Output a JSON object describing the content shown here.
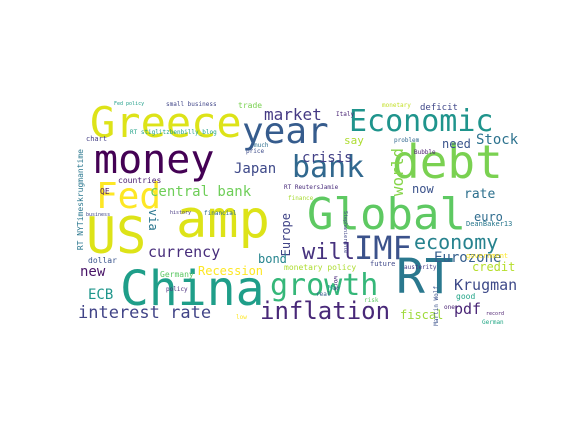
{
  "words": [
    {
      "text": "Greece",
      "color": "#dde318"
    },
    {
      "text": "year",
      "color": "#365c8d"
    },
    {
      "text": "Economic",
      "color": "#1f948c"
    },
    {
      "text": "money",
      "color": "#440154"
    },
    {
      "text": "debt",
      "color": "#7ad151"
    },
    {
      "text": "bank",
      "color": "#31688e"
    },
    {
      "text": "Fed",
      "color": "#fde725"
    },
    {
      "text": "amp",
      "color": "#dde318"
    },
    {
      "text": "Global",
      "color": "#5ec962"
    },
    {
      "text": "US",
      "color": "#dde318"
    },
    {
      "text": "IMF",
      "color": "#3b528b"
    },
    {
      "text": "China",
      "color": "#1f9e89"
    },
    {
      "text": "RT",
      "color": "#2a788e"
    },
    {
      "text": "growth",
      "color": "#35b779"
    },
    {
      "text": "inflation",
      "color": "#482878"
    },
    {
      "text": "economy",
      "color": "#26828e"
    },
    {
      "text": "will",
      "color": "#46327e"
    },
    {
      "text": "currency",
      "color": "#472d7b"
    },
    {
      "text": "interest rate",
      "color": "#414487"
    },
    {
      "text": "Krugman",
      "color": "#3e4a89"
    },
    {
      "text": "central bank",
      "color": "#6ece58"
    },
    {
      "text": "market",
      "color": "#443983"
    },
    {
      "text": "Stock",
      "color": "#2c728e"
    },
    {
      "text": "Japan",
      "color": "#3e4989"
    },
    {
      "text": "crisis",
      "color": "#424086"
    },
    {
      "text": "Eurozone",
      "color": "#355f8d"
    },
    {
      "text": "world",
      "color": "#86d549"
    },
    {
      "text": "rate",
      "color": "#2d708e"
    },
    {
      "text": "pdf",
      "color": "#482475"
    },
    {
      "text": "new",
      "color": "#481467"
    },
    {
      "text": "ECB",
      "color": "#1f968b"
    },
    {
      "text": "Recession",
      "color": "#fde725"
    },
    {
      "text": "credit",
      "color": "#b5de2b"
    },
    {
      "text": "fiscal",
      "color": "#9fda3a"
    },
    {
      "text": "euro",
      "color": "#2f6c8e"
    },
    {
      "text": "now",
      "color": "#3b528b"
    },
    {
      "text": "need",
      "color": "#3a548c"
    },
    {
      "text": "via",
      "color": "#2a768e"
    },
    {
      "text": "Europe",
      "color": "#414487"
    },
    {
      "text": "bond",
      "color": "#25848e"
    },
    {
      "text": "say",
      "color": "#addc30"
    },
    {
      "text": "trade",
      "color": "#7ad151"
    },
    {
      "text": "deficit",
      "color": "#3f4788"
    },
    {
      "text": "monetary",
      "color": "#c2df23"
    },
    {
      "text": "small business",
      "color": "#404688"
    },
    {
      "text": "countries",
      "color": "#481c6e"
    },
    {
      "text": "dollar",
      "color": "#3a548c"
    },
    {
      "text": "Germany",
      "color": "#5cc863"
    },
    {
      "text": "monetary policy",
      "color": "#addc30"
    },
    {
      "text": "policy",
      "color": "#472c7a"
    },
    {
      "text": "future",
      "color": "#3f4889"
    },
    {
      "text": "good",
      "color": "#20a486"
    },
    {
      "text": "government",
      "color": "#fde725"
    },
    {
      "text": "German",
      "color": "#22a785"
    },
    {
      "text": "austerity",
      "color": "#443a83"
    },
    {
      "text": "May",
      "color": "#1f9a8a"
    },
    {
      "text": "price",
      "color": "#3e4c8a"
    },
    {
      "text": "finance",
      "color": "#a8db34"
    },
    {
      "text": "much",
      "color": "#2e6e8e"
    },
    {
      "text": "RT NYTimeskrugmantime",
      "color": "#2a778e"
    },
    {
      "text": "RT ReutersJamie",
      "color": "#472a7a"
    },
    {
      "text": "RT stiglitzbenbilly_blog",
      "color": "#1fa187"
    },
    {
      "text": "DeanBaker13",
      "color": "#2a788e"
    },
    {
      "text": "QE",
      "color": "#481668"
    },
    {
      "text": "chart",
      "color": "#433e85"
    },
    {
      "text": "real",
      "color": "#365d8d"
    },
    {
      "text": "low",
      "color": "#fde725"
    },
    {
      "text": "one",
      "color": "#482173"
    },
    {
      "text": "record",
      "color": "#481a6c"
    },
    {
      "text": "Stephanieruhle",
      "color": "#404588"
    },
    {
      "text": "history",
      "color": "#453781"
    },
    {
      "text": "financial",
      "color": "#2f6c8e"
    },
    {
      "text": "Bubble",
      "color": "#481b6d"
    },
    {
      "text": "problem",
      "color": "#31688e"
    },
    {
      "text": "Italy",
      "color": "#482374"
    },
    {
      "text": "business",
      "color": "#3f4788"
    },
    {
      "text": "Martin Wolf",
      "color": "#3b528b"
    },
    {
      "text": "Fed policy",
      "color": "#1f9e89"
    },
    {
      "text": "risk",
      "color": "#5ec962"
    },
    {
      "text": "work",
      "color": "#482878"
    }
  ]
}
